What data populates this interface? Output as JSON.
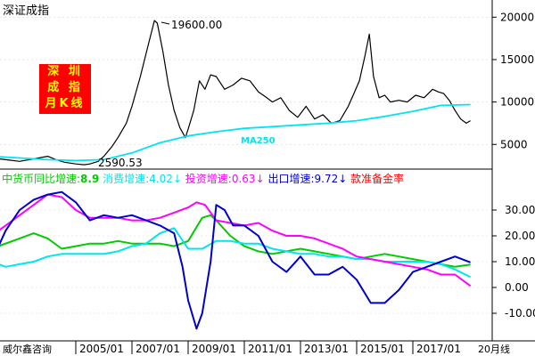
{
  "chart_data": [
    {
      "type": "line",
      "title": "深证成指",
      "badge": [
        "深  圳",
        "成  指",
        "月K线"
      ],
      "y_ticks": [
        5000,
        10000,
        15000,
        20000
      ],
      "ylim": [
        2300,
        21500
      ],
      "annotations": {
        "high_label": "19600.00",
        "low_label": "2590.53",
        "ma_label": "MA250"
      },
      "series": [
        {
          "color": "#000000",
          "x": [
            2002.0,
            2002.5,
            2003.0,
            2003.5,
            2004.0,
            2004.3,
            2004.6,
            2005.0,
            2005.3,
            2005.5,
            2005.8,
            2006.0,
            2006.3,
            2006.5,
            2006.8,
            2007.0,
            2007.3,
            2007.6,
            2007.8,
            2007.9,
            2008.1,
            2008.3,
            2008.5,
            2008.7,
            2008.9,
            2009.0,
            2009.2,
            2009.4,
            2009.6,
            2009.8,
            2010.0,
            2010.3,
            2010.6,
            2010.9,
            2011.2,
            2011.5,
            2011.8,
            2012.0,
            2012.3,
            2012.6,
            2012.9,
            2013.2,
            2013.5,
            2013.8,
            2014.1,
            2014.4,
            2014.7,
            2014.9,
            2015.1,
            2015.3,
            2015.45,
            2015.6,
            2015.8,
            2016.0,
            2016.2,
            2016.5,
            2016.8,
            2017.1,
            2017.4,
            2017.7,
            2017.9,
            2018.1,
            2018.3,
            2018.5,
            2018.7,
            2018.9,
            2019.05
          ],
          "values": [
            3400,
            3200,
            3000,
            3300,
            3600,
            3200,
            2900,
            2700,
            2600,
            2700,
            3000,
            3600,
            4800,
            5800,
            7500,
            9500,
            13000,
            17000,
            19600,
            19300,
            16000,
            12000,
            9000,
            7000,
            5800,
            6800,
            9000,
            12500,
            11500,
            13200,
            13000,
            11500,
            12000,
            12800,
            12500,
            11200,
            10500,
            10000,
            10500,
            9000,
            8200,
            9500,
            8000,
            8500,
            7500,
            7800,
            9500,
            11000,
            12500,
            15500,
            18000,
            13000,
            10500,
            10800,
            10000,
            10200,
            10000,
            10800,
            10500,
            11500,
            11200,
            11000,
            10200,
            9000,
            8000,
            7500,
            7800
          ]
        },
        {
          "name": "MA250",
          "color": "#00e5ee",
          "x": [
            2002.0,
            2003.0,
            2004.0,
            2005.0,
            2006.0,
            2007.0,
            2008.0,
            2009.0,
            2010.0,
            2011.0,
            2012.0,
            2013.0,
            2014.0,
            2015.0,
            2016.0,
            2017.0,
            2018.0,
            2019.05
          ],
          "values": [
            3600,
            3400,
            3200,
            3100,
            3200,
            4000,
            5200,
            6000,
            6500,
            6900,
            7100,
            7300,
            7500,
            7800,
            8300,
            8900,
            9600,
            9700
          ]
        }
      ]
    },
    {
      "type": "line",
      "y_ticks": [
        -10,
        0,
        10,
        20,
        30
      ],
      "y_tick_labels": [
        "-10.00",
        "0.00",
        "10.00",
        "20.00",
        "30.00"
      ],
      "ylim": [
        -17,
        40
      ],
      "x_ticks": [
        "2005/01",
        "2007/01",
        "2009/01",
        "2011/01",
        "2013/01",
        "2015/01",
        "2017/01"
      ],
      "footer": {
        "source": "威尔鑫咨询",
        "suffix": "20月线"
      },
      "legend": [
        {
          "text": "中货币同比增速:",
          "value": "8.9",
          "color": "#00cc00"
        },
        {
          "text": "消费增速:",
          "value": "4.02↓",
          "color": "#00e5ee"
        },
        {
          "text": "投资增速:",
          "value": "0.63↓",
          "color": "#ff00ff"
        },
        {
          "text": "出口增速:",
          "value": "9.72↓",
          "color": "#0000cc"
        },
        {
          "text": "款准备金率",
          "value": "",
          "color": "#ff0000"
        }
      ],
      "series": [
        {
          "name": "中货币同比增速",
          "color": "#00cc00",
          "x": [
            2002.0,
            2003.0,
            2003.5,
            2004.0,
            2004.5,
            2005.0,
            2005.5,
            2006.0,
            2006.5,
            2007.0,
            2007.5,
            2008.0,
            2008.5,
            2009.0,
            2009.5,
            2009.8,
            2010.0,
            2010.5,
            2011.0,
            2011.5,
            2012.0,
            2012.5,
            2013.0,
            2013.5,
            2014.0,
            2014.5,
            2015.0,
            2015.5,
            2016.0,
            2016.5,
            2017.0,
            2017.5,
            2018.0,
            2018.5,
            2019.05
          ],
          "values": [
            15,
            19,
            21,
            19,
            15,
            16,
            17,
            17,
            18,
            17,
            17,
            17,
            16,
            18,
            27,
            28,
            26,
            20,
            16,
            14,
            13,
            14,
            15,
            14,
            13,
            12,
            11,
            12,
            13,
            12,
            11,
            10,
            9,
            8,
            8.9
          ]
        },
        {
          "name": "消费增速",
          "color": "#00e5ee",
          "x": [
            2002.0,
            2002.5,
            2003.0,
            2003.5,
            2004.0,
            2004.5,
            2005.0,
            2005.5,
            2006.0,
            2006.5,
            2007.0,
            2007.5,
            2008.0,
            2008.5,
            2009.0,
            2009.5,
            2010.0,
            2010.5,
            2011.0,
            2011.5,
            2012.0,
            2012.5,
            2013.0,
            2013.5,
            2014.0,
            2014.5,
            2015.0,
            2015.5,
            2016.0,
            2016.5,
            2017.0,
            2017.5,
            2018.0,
            2018.5,
            2019.05
          ],
          "values": [
            10,
            8,
            9,
            10,
            12,
            13,
            13,
            13,
            13,
            14,
            16,
            17,
            21,
            23,
            15,
            15,
            18,
            18,
            17,
            17,
            15,
            14,
            13,
            13,
            12,
            12,
            11,
            11,
            10,
            10,
            10,
            10,
            9,
            7,
            4
          ]
        },
        {
          "name": "投资增速",
          "color": "#ff00ff",
          "x": [
            2002.0,
            2002.5,
            2003.0,
            2003.5,
            2004.0,
            2004.5,
            2005.0,
            2005.5,
            2006.0,
            2006.5,
            2007.0,
            2007.5,
            2008.0,
            2008.5,
            2009.0,
            2009.3,
            2009.6,
            2010.0,
            2010.5,
            2011.0,
            2011.5,
            2012.0,
            2012.5,
            2013.0,
            2013.5,
            2014.0,
            2014.5,
            2015.0,
            2015.5,
            2016.0,
            2016.5,
            2017.0,
            2017.5,
            2018.0,
            2018.5,
            2019.05
          ],
          "values": [
            20,
            24,
            28,
            32,
            36,
            35,
            30,
            27,
            27,
            27,
            26,
            26,
            27,
            29,
            31,
            33,
            32,
            26,
            25,
            24,
            25,
            22,
            20,
            20,
            19,
            17,
            15,
            12,
            11,
            10,
            9,
            8,
            7,
            5,
            5,
            0.6
          ]
        },
        {
          "name": "出口增速",
          "color": "#0000cc",
          "x": [
            2002.0,
            2002.5,
            2003.0,
            2003.5,
            2004.0,
            2004.5,
            2005.0,
            2005.5,
            2006.0,
            2006.5,
            2007.0,
            2007.5,
            2008.0,
            2008.5,
            2008.8,
            2009.0,
            2009.3,
            2009.5,
            2009.8,
            2010.0,
            2010.3,
            2010.6,
            2011.0,
            2011.5,
            2012.0,
            2012.5,
            2013.0,
            2013.5,
            2014.0,
            2014.5,
            2015.0,
            2015.5,
            2016.0,
            2016.5,
            2017.0,
            2017.5,
            2018.0,
            2018.5,
            2019.05
          ],
          "values": [
            10,
            22,
            30,
            34,
            36,
            37,
            33,
            26,
            28,
            27,
            28,
            26,
            24,
            21,
            8,
            -5,
            -16,
            -10,
            10,
            32,
            30,
            24,
            24,
            20,
            10,
            6,
            12,
            5,
            5,
            8,
            3,
            -6,
            -6,
            -1,
            6,
            8,
            10,
            12,
            9.72
          ]
        }
      ]
    }
  ]
}
